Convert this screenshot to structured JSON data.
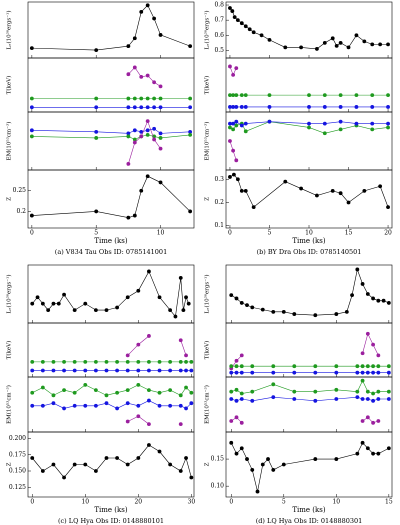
{
  "chart_data": [
    {
      "type": "line",
      "ylabel": "Lₓ(10³⁰ergs⁻¹)",
      "x": [
        0,
        5,
        7.5,
        8,
        8.5,
        9,
        9.5,
        10,
        12.3
      ],
      "xlim": [
        -0.3,
        12.6
      ],
      "ylim": [
        0.2,
        1.05
      ],
      "series": [
        {
          "color": "#000000",
          "values": [
            0.35,
            0.32,
            0.38,
            0.5,
            0.9,
            1.0,
            0.8,
            0.55,
            0.38
          ]
        }
      ]
    },
    {
      "type": "line",
      "ylabel": "T(keV)",
      "x": [
        0,
        5,
        7.5,
        8,
        8.5,
        9,
        9.5,
        10,
        12.3
      ],
      "xlim": [
        -0.3,
        12.6
      ],
      "ylim": [
        0,
        4
      ],
      "series": [
        {
          "color": "#9b1f9e",
          "values": [
            null,
            null,
            2.8,
            3.3,
            2.6,
            2.7,
            2.2,
            1.9,
            null
          ]
        },
        {
          "color": "#1f9a1f",
          "values": [
            1,
            1,
            1,
            1,
            1,
            1,
            1,
            1,
            1
          ]
        },
        {
          "color": "#1515e0",
          "values": [
            0.35,
            0.35,
            0.35,
            0.35,
            0.35,
            0.35,
            0.35,
            0.35,
            0.35
          ]
        }
      ]
    },
    {
      "type": "line",
      "ylabel": "EM(10⁵³cm⁻³)",
      "x": [
        0,
        5,
        7.5,
        8,
        8.5,
        9,
        9.5,
        10,
        12.3
      ],
      "xlim": [
        -0.3,
        12.6
      ],
      "ylim": [
        -0.1,
        1.8
      ],
      "series": [
        {
          "color": "#1515e0",
          "values": [
            1.2,
            1.15,
            1.1,
            1.2,
            1.15,
            1.2,
            1.25,
            1.1,
            1.15
          ]
        },
        {
          "color": "#1f9a1f",
          "values": [
            1.0,
            0.95,
            1.0,
            0.9,
            1.0,
            1.05,
            1.0,
            0.95,
            1.05
          ]
        },
        {
          "color": "#9b1f9e",
          "values": [
            null,
            null,
            0.1,
            0.8,
            1.0,
            1.5,
            0.9,
            0.6,
            null
          ]
        }
      ]
    },
    {
      "type": "line",
      "ylabel": "Z",
      "x": [
        0,
        5,
        7.5,
        8,
        8.5,
        9,
        10,
        12.3
      ],
      "xlim": [
        -0.3,
        12.6
      ],
      "xticks": [
        0,
        5,
        10
      ],
      "xlabel": "Time (ks)",
      "caption": "(a) V834 Tau Obs ID: 0785141001",
      "ylim": [
        0.16,
        0.3
      ],
      "yticks": [
        0.2,
        0.25
      ],
      "series": [
        {
          "color": "#000000",
          "values": [
            0.19,
            0.2,
            0.185,
            0.19,
            0.25,
            0.285,
            0.27,
            0.2
          ]
        }
      ]
    },
    {
      "type": "line",
      "ylabel": "Lₓ(10³⁰ergs⁻¹)",
      "x": [
        0,
        0.3,
        0.6,
        1,
        1.5,
        2,
        2.5,
        3,
        4,
        5,
        7,
        9,
        11,
        12,
        13,
        13.5,
        14,
        15,
        16,
        17,
        18,
        19,
        20
      ],
      "xlim": [
        -0.5,
        20.5
      ],
      "ylim": [
        0.45,
        0.82
      ],
      "yticks": [
        0.5,
        0.6,
        0.7,
        0.8
      ],
      "series": [
        {
          "color": "#000000",
          "values": [
            0.78,
            0.76,
            0.72,
            0.7,
            0.68,
            0.66,
            0.64,
            0.62,
            0.6,
            0.57,
            0.52,
            0.52,
            0.51,
            0.55,
            0.58,
            0.53,
            0.55,
            0.52,
            0.6,
            0.56,
            0.54,
            0.54,
            0.54
          ]
        }
      ]
    },
    {
      "type": "line",
      "ylabel": "T(keV)",
      "x": [
        0,
        0.4,
        0.8,
        1.5,
        2,
        5,
        10,
        12,
        14,
        16,
        18,
        20
      ],
      "xlim": [
        -0.5,
        20.5
      ],
      "ylim": [
        0,
        3.2
      ],
      "series": [
        {
          "color": "#9b1f9e",
          "values": [
            2.7,
            2.2,
            2.6,
            null,
            null,
            null,
            null,
            null,
            null,
            null,
            null,
            null
          ]
        },
        {
          "color": "#1f9a1f",
          "values": [
            1,
            1,
            1,
            1,
            1,
            1,
            1,
            1,
            1,
            1,
            1,
            1
          ]
        },
        {
          "color": "#1515e0",
          "values": [
            0.3,
            0.3,
            0.3,
            0.3,
            0.3,
            0.3,
            0.3,
            0.3,
            0.3,
            0.3,
            0.3,
            0.3
          ]
        }
      ]
    },
    {
      "type": "line",
      "ylabel": "EM(10⁵³cm⁻³)",
      "x": [
        0,
        0.4,
        0.8,
        1.5,
        2,
        5,
        10,
        12,
        14,
        16,
        18,
        20
      ],
      "xlim": [
        -0.5,
        20.5
      ],
      "ylim": [
        0,
        3
      ],
      "series": [
        {
          "color": "#1f9a1f",
          "values": [
            2.2,
            2.1,
            2.3,
            2.4,
            2.0,
            2.5,
            2.2,
            1.9,
            2.1,
            2.3,
            2.1,
            2.2
          ]
        },
        {
          "color": "#1515e0",
          "values": [
            2.4,
            2.4,
            2.5,
            2.3,
            2.4,
            2.5,
            2.4,
            2.4,
            2.5,
            2.4,
            2.4,
            2.4
          ]
        },
        {
          "color": "#9b1f9e",
          "values": [
            1.5,
            1.0,
            0.5,
            null,
            null,
            null,
            null,
            null,
            null,
            null,
            null,
            null
          ]
        }
      ]
    },
    {
      "type": "line",
      "ylabel": "Z",
      "x": [
        0,
        0.5,
        1,
        1.5,
        2,
        3,
        7,
        9,
        11,
        13,
        14,
        15,
        17,
        19,
        20
      ],
      "xlim": [
        -0.5,
        20.5
      ],
      "xticks": [
        0,
        5,
        10,
        15,
        20
      ],
      "xlabel": "Time (ks)",
      "caption": "(b) BY Dra Obs ID: 0785140501",
      "ylim": [
        0.09,
        0.34
      ],
      "yticks": [
        0.1,
        0.2,
        0.3
      ],
      "series": [
        {
          "color": "#000000",
          "values": [
            0.31,
            0.32,
            0.3,
            0.25,
            0.25,
            0.18,
            0.29,
            0.26,
            0.23,
            0.25,
            0.24,
            0.2,
            0.25,
            0.27,
            0.18
          ]
        }
      ]
    },
    {
      "type": "line",
      "ylabel": "Lₓ(10³⁰ergs⁻¹)",
      "x": [
        0,
        1,
        2,
        3,
        4,
        5,
        6,
        8,
        10,
        12,
        14,
        16,
        18,
        20,
        22,
        24,
        26,
        27,
        28,
        28.5,
        29,
        29.5
      ],
      "xlim": [
        -0.8,
        30.5
      ],
      "ylim": [
        0.4,
        0.85
      ],
      "series": [
        {
          "color": "#000000",
          "values": [
            0.55,
            0.6,
            0.55,
            0.5,
            0.55,
            0.55,
            0.62,
            0.5,
            0.55,
            0.5,
            0.5,
            0.52,
            0.6,
            0.65,
            0.8,
            0.6,
            0.5,
            0.45,
            0.75,
            0.5,
            0.6,
            0.55
          ]
        }
      ]
    },
    {
      "type": "line",
      "ylabel": "T(keV)",
      "x": [
        0,
        2,
        4,
        6,
        8,
        10,
        12,
        14,
        16,
        18,
        20,
        22,
        24,
        26,
        28,
        29,
        30
      ],
      "xlim": [
        -0.8,
        30.5
      ],
      "ylim": [
        0,
        2.5
      ],
      "series": [
        {
          "color": "#9b1f9e",
          "values": [
            null,
            null,
            null,
            null,
            null,
            null,
            null,
            null,
            null,
            1.0,
            1.5,
            1.9,
            null,
            null,
            1.7,
            1.0,
            null
          ]
        },
        {
          "color": "#1f9a1f",
          "values": [
            0.7,
            0.7,
            0.7,
            0.7,
            0.7,
            0.7,
            0.7,
            0.7,
            0.7,
            0.7,
            0.7,
            0.7,
            0.7,
            0.7,
            0.7,
            0.7,
            0.7
          ]
        },
        {
          "color": "#1515e0",
          "values": [
            0.3,
            0.3,
            0.3,
            0.3,
            0.3,
            0.3,
            0.3,
            0.3,
            0.3,
            0.3,
            0.3,
            0.3,
            0.3,
            0.3,
            0.3,
            0.3,
            0.3
          ]
        }
      ]
    },
    {
      "type": "line",
      "ylabel": "EM(10⁵³cm⁻³)",
      "x": [
        0,
        2,
        4,
        6,
        8,
        10,
        12,
        14,
        16,
        18,
        20,
        22,
        24,
        26,
        28,
        29,
        30
      ],
      "xlim": [
        -0.8,
        30.5
      ],
      "ylim": [
        0,
        2.1
      ],
      "series": [
        {
          "color": "#1f9a1f",
          "values": [
            1.5,
            1.7,
            1.4,
            1.6,
            1.5,
            1.8,
            1.6,
            1.4,
            1.5,
            1.6,
            1.8,
            1.6,
            1.5,
            1.6,
            1.4,
            1.7,
            1.5
          ]
        },
        {
          "color": "#1515e0",
          "values": [
            1.0,
            1.0,
            1.1,
            0.9,
            1.0,
            1.0,
            1.0,
            1.1,
            0.9,
            1.1,
            1.0,
            1.2,
            1.0,
            1.0,
            1.0,
            0.9,
            1.1
          ]
        },
        {
          "color": "#9b1f9e",
          "values": [
            null,
            null,
            null,
            null,
            null,
            null,
            null,
            null,
            null,
            0.4,
            0.6,
            0.3,
            null,
            null,
            0.3,
            null,
            null
          ]
        }
      ]
    },
    {
      "type": "line",
      "ylabel": "Z",
      "x": [
        0,
        2,
        4,
        6,
        8,
        10,
        12,
        14,
        16,
        18,
        20,
        22,
        24,
        26,
        28,
        29,
        30
      ],
      "xlim": [
        -0.8,
        30.5
      ],
      "xticks": [
        0,
        10,
        20,
        30
      ],
      "xlabel": "Time (ks)",
      "caption": "(c) LQ Hya Obs ID: 0148880101",
      "ylim": [
        0.11,
        0.21
      ],
      "yticks": [
        0.125,
        {
          "value": 0.15,
          "label": "0.150"
        },
        0.175,
        {
          "value": 0.2,
          "label": "0.200"
        }
      ],
      "series": [
        {
          "color": "#000000",
          "values": [
            0.17,
            0.15,
            0.16,
            0.14,
            0.16,
            0.16,
            0.15,
            0.17,
            0.17,
            0.16,
            0.17,
            0.19,
            0.18,
            0.16,
            0.15,
            0.17,
            0.14
          ]
        }
      ]
    },
    {
      "type": "line",
      "ylabel": "Lₓ(10³⁰ergs⁻¹)",
      "x": [
        0,
        0.5,
        1,
        1.5,
        2,
        3,
        4,
        5,
        6,
        8,
        10,
        11,
        11.5,
        12,
        12.5,
        13,
        13.5,
        14,
        14.5,
        15
      ],
      "xlim": [
        -0.5,
        15.3
      ],
      "ylim": [
        0.5,
        1.02
      ],
      "series": [
        {
          "color": "#000000",
          "values": [
            0.75,
            0.72,
            0.68,
            0.66,
            0.64,
            0.62,
            0.6,
            0.6,
            0.58,
            0.57,
            0.58,
            0.6,
            0.75,
            0.98,
            0.85,
            0.76,
            0.72,
            0.7,
            0.7,
            0.68
          ]
        }
      ]
    },
    {
      "type": "line",
      "ylabel": "T(keV)",
      "x": [
        0,
        0.5,
        1,
        2,
        4,
        6,
        8,
        10,
        12,
        12.5,
        13,
        13.5,
        14,
        15
      ],
      "xlim": [
        -0.5,
        15.3
      ],
      "ylim": [
        0,
        5
      ],
      "series": [
        {
          "color": "#9b1f9e",
          "values": [
            0.8,
            1.5,
            2.0,
            null,
            null,
            null,
            null,
            null,
            null,
            2.2,
            4.0,
            3.0,
            2.0,
            null
          ]
        },
        {
          "color": "#1f9a1f",
          "values": [
            1,
            1,
            1,
            1,
            1,
            1,
            1,
            1,
            1,
            1,
            1,
            1,
            1,
            1
          ]
        },
        {
          "color": "#1515e0",
          "values": [
            0.4,
            0.4,
            0.4,
            0.4,
            0.4,
            0.4,
            0.4,
            0.4,
            0.4,
            0.4,
            0.4,
            0.4,
            0.4,
            0.4
          ]
        }
      ]
    },
    {
      "type": "line",
      "ylabel": "EM(10⁵³cm⁻³)",
      "x": [
        0,
        0.5,
        1,
        2,
        4,
        6,
        8,
        10,
        12,
        12.5,
        13,
        13.5,
        14,
        15
      ],
      "xlim": [
        -0.5,
        15.3
      ],
      "ylim": [
        0,
        3
      ],
      "series": [
        {
          "color": "#1f9a1f",
          "values": [
            2.2,
            2.3,
            2.1,
            2.2,
            2.6,
            2.2,
            2.2,
            2.3,
            2.2,
            2.8,
            2.2,
            2.1,
            2.2,
            2.2
          ]
        },
        {
          "color": "#1515e0",
          "values": [
            1.8,
            1.7,
            1.8,
            1.7,
            1.9,
            1.8,
            1.7,
            1.8,
            1.9,
            1.8,
            1.8,
            1.7,
            1.8,
            1.8
          ]
        },
        {
          "color": "#9b1f9e",
          "values": [
            0.6,
            0.8,
            0.5,
            null,
            null,
            null,
            null,
            null,
            null,
            0.6,
            0.8,
            0.5,
            0.6,
            null
          ]
        }
      ]
    },
    {
      "type": "line",
      "ylabel": "Z",
      "x": [
        0,
        0.5,
        1,
        1.5,
        2,
        2.5,
        3,
        3.5,
        4,
        5,
        8,
        10,
        12,
        12.5,
        13,
        13.5,
        14,
        15
      ],
      "xlim": [
        -0.5,
        15.3
      ],
      "xticks": [
        0,
        5,
        10,
        15
      ],
      "xlabel": "Time (ks)",
      "caption": "(d) LQ Hya Obs ID: 0148880301",
      "ylim": [
        0.08,
        0.2
      ],
      "yticks": [
        {
          "value": 0.1,
          "label": "0.10"
        },
        0.15
      ],
      "series": [
        {
          "color": "#000000",
          "values": [
            0.18,
            0.16,
            0.17,
            0.15,
            0.13,
            0.09,
            0.14,
            0.15,
            0.13,
            0.14,
            0.15,
            0.15,
            0.16,
            0.18,
            0.17,
            0.16,
            0.16,
            0.17
          ]
        }
      ]
    }
  ]
}
